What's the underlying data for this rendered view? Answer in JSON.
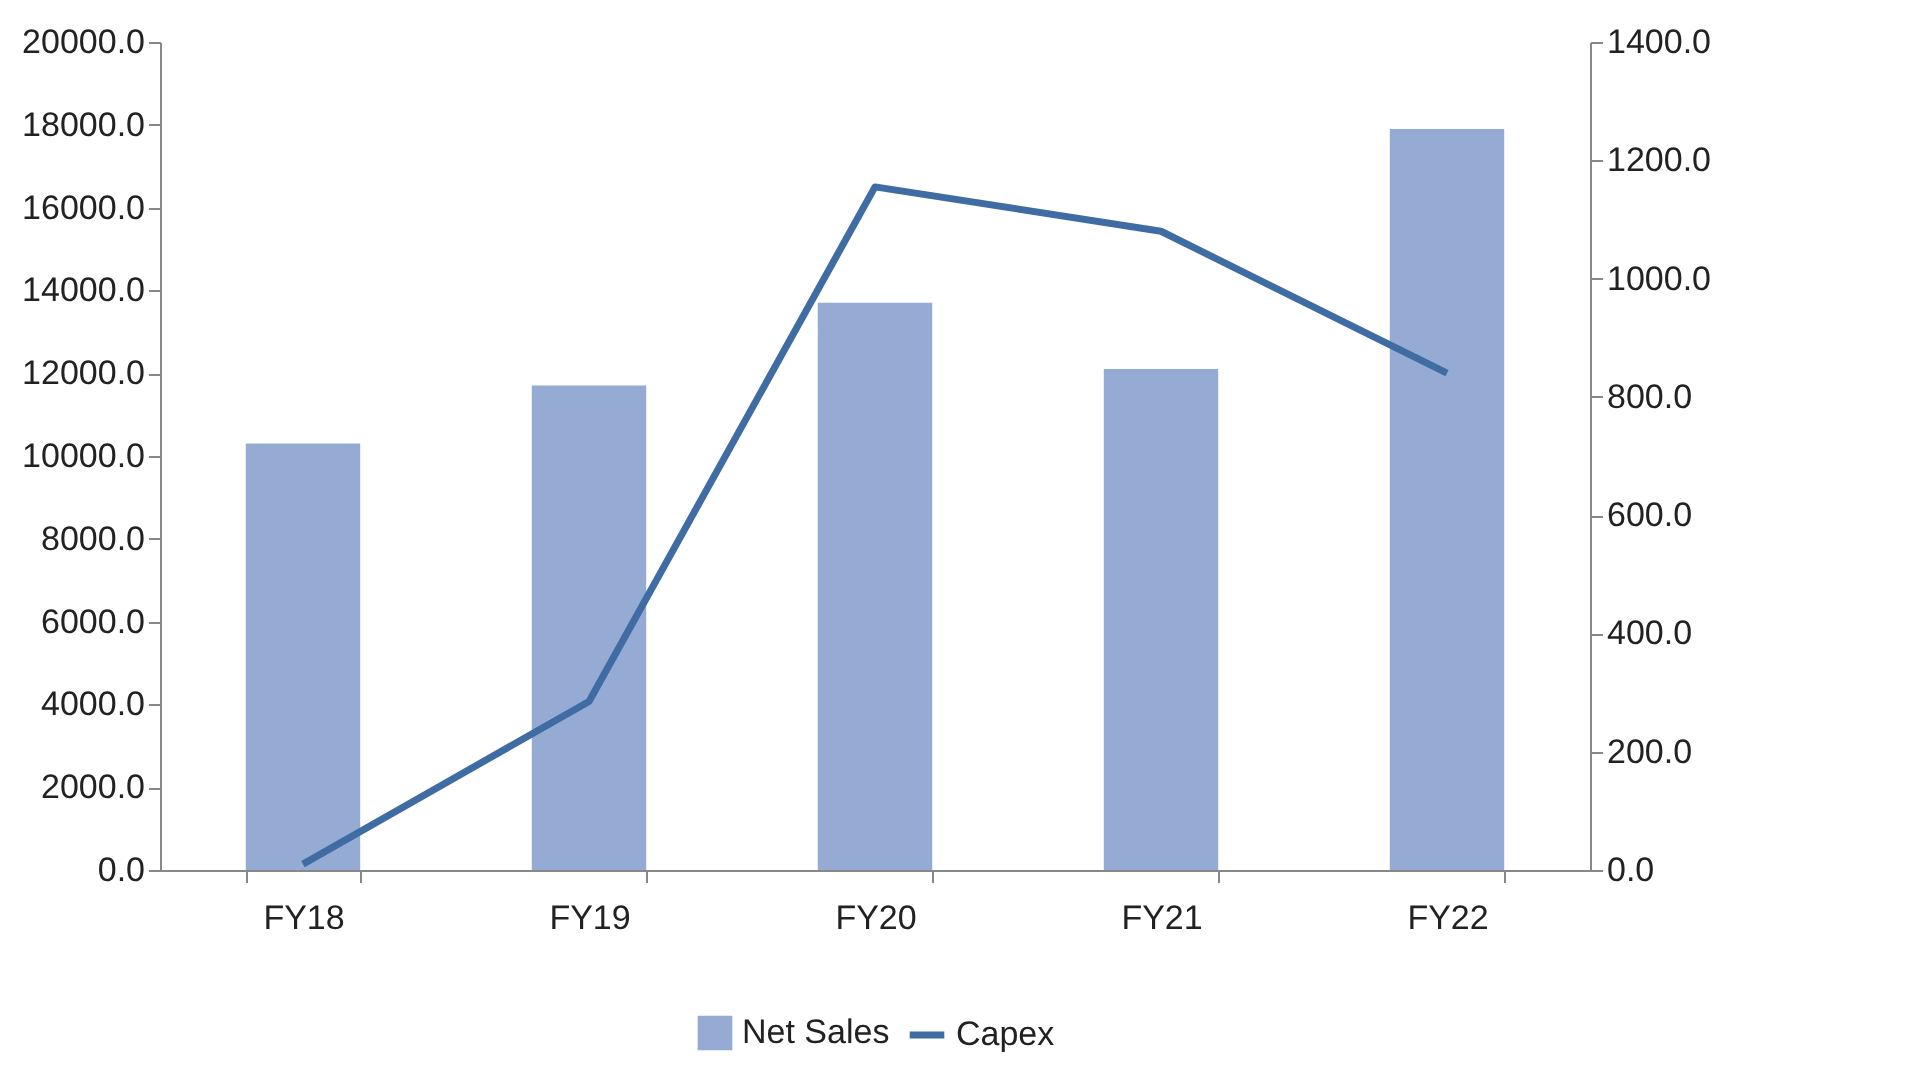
{
  "chart_data": {
    "type": "bar",
    "categories": [
      "FY18",
      "FY19",
      "FY20",
      "FY21",
      "FY22"
    ],
    "series": [
      {
        "name": "Net Sales",
        "color": "#95abd4",
        "values": [
          10300,
          11700,
          13700,
          12100,
          17900
        ]
      },
      {
        "name": "Capex",
        "type": "line",
        "axis": "y2",
        "color": "#3e6ca3",
        "values": [
          10,
          285,
          1155,
          1080,
          840
        ]
      }
    ],
    "ylim": [
      0,
      20000
    ],
    "yticks": [
      {
        "value": 0,
        "label": "0.0"
      },
      {
        "value": 2000,
        "label": "2000.0"
      },
      {
        "value": 4000,
        "label": "4000.0"
      },
      {
        "value": 6000,
        "label": "6000.0"
      },
      {
        "value": 8000,
        "label": "8000.0"
      },
      {
        "value": 10000,
        "label": "10000.0"
      },
      {
        "value": 12000,
        "label": "12000.0"
      },
      {
        "value": 14000,
        "label": "14000.0"
      },
      {
        "value": 16000,
        "label": "16000.0"
      },
      {
        "value": 18000,
        "label": "18000.0"
      },
      {
        "value": 20000,
        "label": "20000.0"
      }
    ],
    "y2lim": [
      0,
      1400
    ],
    "y2ticks": [
      {
        "value": 0,
        "label": "0.0"
      },
      {
        "value": 200,
        "label": "200.0"
      },
      {
        "value": 400,
        "label": "400.0"
      },
      {
        "value": 600,
        "label": "600.0"
      },
      {
        "value": 800,
        "label": "800.0"
      },
      {
        "value": 1000,
        "label": "1000.0"
      },
      {
        "value": 1200,
        "label": "1200.0"
      },
      {
        "value": 1400,
        "label": "1400.0"
      }
    ],
    "grid": false,
    "legend": "bottom",
    "marker": "none",
    "line_style": "solid"
  }
}
